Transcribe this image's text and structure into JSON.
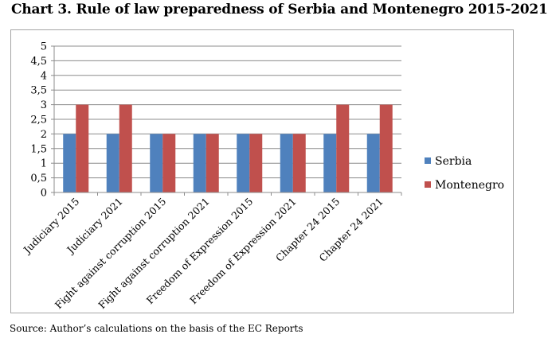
{
  "title": "Chart 3. Rule of law preparedness of Serbia and Montenegro 2015-2021",
  "source": "Source: Author’s calculations on the basis of the EC Reports",
  "chart_data": {
    "type": "bar",
    "title": "Chart 3. Rule of law preparedness of Serbia and Montenegro 2015-2021",
    "categories": [
      "Judiciary 2015",
      "Judiciary 2021",
      "Fight against corruption 2015",
      "Fight against corruption 2021",
      "Freedom of Expression 2015",
      "Freedom of Expression 2021",
      "Chapter 24 2015",
      "Chapter 24 2021"
    ],
    "series": [
      {
        "name": "Serbia",
        "color": "#4f81bd",
        "values": [
          2,
          2,
          2,
          2,
          2,
          2,
          2,
          2
        ]
      },
      {
        "name": "Montenegro",
        "color": "#c0504d",
        "values": [
          3,
          3,
          2,
          2,
          2,
          2,
          3,
          3
        ]
      }
    ],
    "ylim": [
      0,
      5
    ],
    "yticks": [
      "0",
      "0,5",
      "1",
      "1,5",
      "2",
      "2,5",
      "3",
      "3,5",
      "4",
      "4,5",
      "5"
    ],
    "grid": true,
    "legend": "right",
    "xlabel": "",
    "ylabel": ""
  }
}
